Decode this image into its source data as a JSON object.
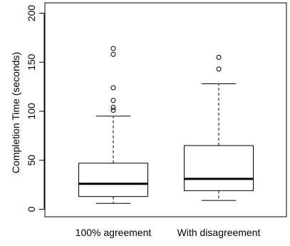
{
  "chart_data": {
    "type": "boxplot",
    "ylabel": "Completion Time (seconds)",
    "xlabel": "",
    "ylim": [
      0,
      200
    ],
    "yticks": [
      0,
      50,
      100,
      150,
      200
    ],
    "grid": false,
    "categories": [
      "100% agreement",
      "With disagreement"
    ],
    "boxes": [
      {
        "category": "100% agreement",
        "whisker_low": 6,
        "q1": 13,
        "median": 26,
        "q3": 47,
        "whisker_high": 95,
        "outliers": [
          101,
          104,
          111,
          124,
          158,
          164
        ]
      },
      {
        "category": "With disagreement",
        "whisker_low": 9,
        "q1": 19,
        "median": 31,
        "q3": 65,
        "whisker_high": 128,
        "outliers": [
          143,
          155
        ]
      }
    ]
  }
}
